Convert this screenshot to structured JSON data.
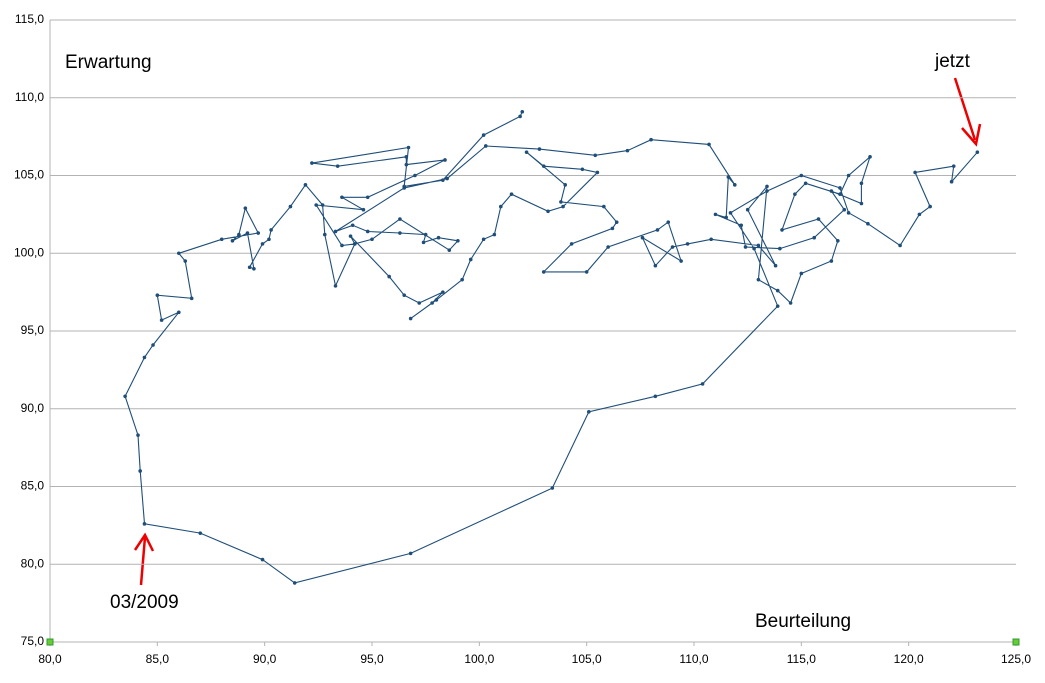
{
  "chart_data": {
    "type": "line",
    "y_label": "Erwartung",
    "x_label": "Beurteilung",
    "annotations": [
      {
        "text": "jetzt"
      },
      {
        "text": "03/2009"
      }
    ],
    "color": "#1f4e79",
    "grid": true,
    "xlim": [
      80,
      125
    ],
    "xticks": [
      {
        "value": 80,
        "label": "80,0"
      },
      {
        "value": 85,
        "label": "85,0"
      },
      {
        "value": 90,
        "label": "90,0"
      },
      {
        "value": 95,
        "label": "95,0"
      },
      {
        "value": 100,
        "label": "100,0"
      },
      {
        "value": 105,
        "label": "105,0"
      },
      {
        "value": 110,
        "label": "110,0"
      },
      {
        "value": 115,
        "label": "115,0"
      },
      {
        "value": 120,
        "label": "120,0"
      },
      {
        "value": 125,
        "label": "125,0"
      }
    ],
    "ylim": [
      75,
      115
    ],
    "yticks": [
      {
        "value": 75,
        "label": "75,0"
      },
      {
        "value": 80,
        "label": "80,0"
      },
      {
        "value": 85,
        "label": "85,0"
      },
      {
        "value": 90,
        "label": "90,0"
      },
      {
        "value": 95,
        "label": "95,0"
      },
      {
        "value": 100,
        "label": "100,0"
      },
      {
        "value": 105,
        "label": "105,0"
      },
      {
        "value": 110,
        "label": "110,0"
      },
      {
        "value": 115,
        "label": "115,0"
      }
    ],
    "x": [
      102.0,
      101.9,
      100.2,
      98.3,
      96.5,
      96.7,
      92.2,
      93.4,
      96.6,
      96.6,
      98.4,
      97.0,
      94.8,
      93.6,
      94.6,
      92.4,
      93.6,
      94.2,
      94.0,
      95.8,
      96.5,
      97.2,
      98.3,
      97.8,
      96.8,
      98.0,
      99.2,
      99.6,
      100.2,
      100.7,
      101.0,
      101.5,
      103.2,
      103.9,
      105.5,
      104.8,
      103.0,
      102.2,
      104.0,
      103.8,
      105.8,
      106.4,
      106.2,
      104.3,
      103.0,
      105.0,
      106.0,
      108.3,
      108.8,
      109.4,
      107.6,
      108.2,
      109.0,
      109.7,
      110.8,
      113.0,
      113.8,
      112.5,
      113.4,
      113.0,
      113.9,
      114.5,
      115.0,
      116.4,
      116.7,
      115.8,
      114.1,
      114.7,
      115.2,
      116.8,
      117.2,
      118.2,
      117.8,
      117.8,
      116.4,
      117.0,
      115.6,
      114.0,
      112.4,
      112.2,
      111.0,
      111.5,
      111.6,
      111.9,
      110.7,
      108.0,
      106.9,
      105.4,
      102.8,
      100.3,
      98.5,
      96.5,
      93.3,
      94.1,
      94.8,
      96.3,
      97.5,
      97.4,
      98.1,
      99.0,
      98.6,
      96.3,
      95.0,
      94.2,
      93.3,
      92.8,
      92.7,
      91.9,
      91.2,
      90.3,
      90.2,
      89.9,
      89.3,
      89.5,
      89.2,
      88.5,
      88.8,
      89.1,
      89.7,
      88.0,
      86.0,
      86.3,
      86.6,
      85.0,
      85.2,
      86.0,
      84.8,
      84.4,
      83.5,
      84.1,
      84.2,
      84.4,
      87.0,
      89.9,
      91.4,
      96.8,
      103.4,
      105.1,
      108.2,
      110.4,
      113.9,
      112.8,
      111.7,
      113.4,
      115.0,
      116.8,
      117.2,
      118.1,
      119.6,
      120.5,
      121.0,
      120.3,
      122.1,
      122.0,
      123.2
    ],
    "values": [
      109.1,
      108.8,
      107.6,
      104.7,
      104.3,
      106.8,
      105.8,
      105.6,
      106.2,
      105.7,
      106.0,
      105.0,
      103.6,
      103.6,
      102.8,
      103.1,
      100.5,
      100.6,
      101.1,
      98.5,
      97.3,
      96.8,
      97.5,
      96.8,
      95.8,
      97.0,
      98.3,
      99.6,
      100.9,
      101.2,
      103.0,
      103.8,
      102.7,
      103.0,
      105.2,
      105.4,
      105.6,
      106.5,
      104.4,
      103.3,
      103.0,
      102.0,
      101.6,
      100.6,
      98.8,
      98.8,
      100.4,
      101.5,
      102.0,
      99.5,
      101.0,
      99.2,
      100.4,
      100.6,
      100.9,
      100.5,
      99.2,
      102.8,
      104.3,
      98.3,
      97.6,
      96.8,
      98.7,
      99.5,
      100.8,
      102.2,
      101.5,
      103.8,
      104.5,
      103.8,
      105.0,
      106.2,
      104.5,
      103.2,
      104.0,
      102.8,
      101.0,
      100.3,
      100.4,
      101.8,
      102.5,
      102.3,
      104.9,
      104.4,
      107.0,
      107.3,
      106.6,
      106.3,
      106.7,
      106.9,
      104.8,
      104.2,
      101.4,
      101.8,
      101.4,
      101.3,
      101.2,
      100.7,
      101.0,
      100.8,
      100.2,
      102.2,
      100.9,
      100.6,
      97.9,
      101.2,
      103.1,
      104.4,
      103.0,
      101.5,
      100.9,
      100.6,
      99.1,
      99.0,
      101.3,
      100.8,
      101.2,
      102.9,
      101.3,
      100.9,
      100.0,
      99.5,
      97.1,
      97.3,
      95.7,
      96.2,
      94.1,
      93.3,
      90.8,
      88.3,
      86.0,
      82.6,
      82.0,
      80.3,
      78.8,
      80.7,
      84.9,
      89.8,
      90.8,
      91.6,
      96.6,
      100.3,
      102.6,
      104.0,
      105.0,
      104.2,
      102.6,
      101.9,
      100.5,
      102.5,
      103.0,
      105.2,
      105.6,
      104.6,
      106.5
    ]
  }
}
